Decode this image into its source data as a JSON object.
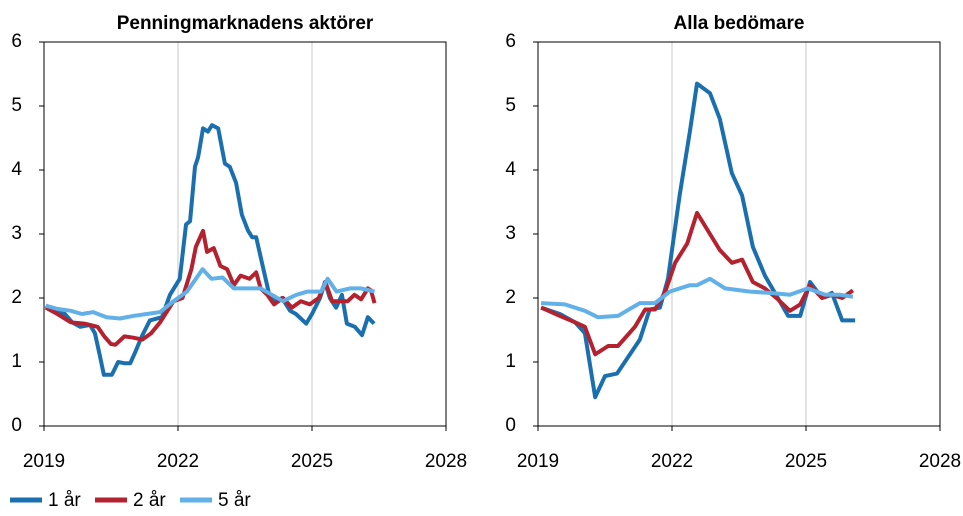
{
  "chart_data": [
    {
      "type": "line",
      "title": "Penningmarknadens aktörer",
      "xlim": [
        2019,
        2028
      ],
      "xticks": [
        2019,
        2022,
        2025,
        2028
      ],
      "ylim": [
        0,
        6
      ],
      "yticks": [
        0,
        1,
        2,
        3,
        4,
        5,
        6
      ],
      "grid": "x",
      "series": [
        {
          "name": "1 år",
          "color": "#1a6faf",
          "x": [
            2019.04,
            2019.25,
            2019.47,
            2019.63,
            2019.81,
            2020.03,
            2020.14,
            2020.25,
            2020.34,
            2020.52,
            2020.66,
            2020.81,
            2020.93,
            2021.04,
            2021.19,
            2021.37,
            2021.64,
            2021.82,
            2022.04,
            2022.18,
            2022.27,
            2022.38,
            2022.45,
            2022.56,
            2022.67,
            2022.76,
            2022.9,
            2023.05,
            2023.16,
            2023.3,
            2023.43,
            2023.57,
            2023.66,
            2023.75,
            2023.88,
            2024.06,
            2024.19,
            2024.33,
            2024.51,
            2024.64,
            2024.87,
            2025.0,
            2025.18,
            2025.29,
            2025.4,
            2025.54,
            2025.67,
            2025.78,
            2025.96,
            2026.12,
            2026.25,
            2026.39
          ],
          "values": [
            1.88,
            1.78,
            1.75,
            1.62,
            1.55,
            1.58,
            1.45,
            1.1,
            0.8,
            0.8,
            1.0,
            0.98,
            0.98,
            1.15,
            1.4,
            1.65,
            1.7,
            2.05,
            2.3,
            3.15,
            3.2,
            4.05,
            4.2,
            4.65,
            4.6,
            4.7,
            4.65,
            4.1,
            4.05,
            3.8,
            3.3,
            3.05,
            2.95,
            2.95,
            2.55,
            2.0,
            1.95,
            2.0,
            1.8,
            1.75,
            1.6,
            1.75,
            2.0,
            2.25,
            2.0,
            1.85,
            2.05,
            1.6,
            1.55,
            1.42,
            1.7,
            1.6
          ]
        },
        {
          "name": "2 år",
          "color": "#b5222f",
          "x": [
            2019.04,
            2019.3,
            2019.6,
            2019.9,
            2020.2,
            2020.35,
            2020.5,
            2020.6,
            2020.8,
            2021.0,
            2021.2,
            2021.4,
            2021.6,
            2021.9,
            2022.1,
            2022.3,
            2022.4,
            2022.56,
            2022.65,
            2022.8,
            2022.95,
            2023.1,
            2023.25,
            2023.4,
            2023.6,
            2023.75,
            2023.85,
            2024.0,
            2024.15,
            2024.35,
            2024.55,
            2024.75,
            2024.95,
            2025.15,
            2025.3,
            2025.45,
            2025.6,
            2025.8,
            2025.95,
            2026.1,
            2026.25,
            2026.32,
            2026.4
          ],
          "values": [
            1.85,
            1.75,
            1.62,
            1.6,
            1.55,
            1.4,
            1.28,
            1.27,
            1.4,
            1.38,
            1.35,
            1.45,
            1.62,
            1.95,
            2.0,
            2.45,
            2.8,
            3.05,
            2.72,
            2.78,
            2.5,
            2.45,
            2.2,
            2.35,
            2.3,
            2.4,
            2.15,
            2.05,
            1.9,
            2.0,
            1.85,
            1.95,
            1.9,
            2.0,
            2.25,
            1.95,
            1.95,
            1.95,
            2.05,
            1.98,
            2.15,
            2.12,
            1.92
          ]
        },
        {
          "name": "5 år",
          "color": "#62b0e8",
          "x": [
            2019.04,
            2019.3,
            2019.6,
            2019.85,
            2020.1,
            2020.4,
            2020.7,
            2021.0,
            2021.3,
            2021.6,
            2021.9,
            2022.2,
            2022.4,
            2022.55,
            2022.75,
            2023.0,
            2023.25,
            2023.5,
            2023.85,
            2024.1,
            2024.35,
            2024.65,
            2024.9,
            2025.2,
            2025.35,
            2025.55,
            2025.85,
            2026.1,
            2026.4
          ],
          "values": [
            1.88,
            1.83,
            1.8,
            1.75,
            1.78,
            1.7,
            1.68,
            1.72,
            1.75,
            1.78,
            1.95,
            2.1,
            2.3,
            2.45,
            2.3,
            2.32,
            2.15,
            2.15,
            2.15,
            2.05,
            1.95,
            2.05,
            2.1,
            2.1,
            2.3,
            2.1,
            2.15,
            2.15,
            2.1
          ]
        }
      ]
    },
    {
      "type": "line",
      "title": "Alla bedömare",
      "xlim": [
        2019,
        2028
      ],
      "xticks": [
        2019,
        2022,
        2025,
        2028
      ],
      "ylim": [
        0,
        6
      ],
      "yticks": [
        0,
        1,
        2,
        3,
        4,
        5,
        6
      ],
      "grid": "x",
      "series": [
        {
          "color": "#1a6faf",
          "x": [
            2019.07,
            2019.49,
            2019.83,
            2020.05,
            2020.28,
            2020.5,
            2020.77,
            2021.28,
            2021.5,
            2021.73,
            2021.91,
            2022.17,
            2022.4,
            2022.56,
            2022.85,
            2023.07,
            2023.34,
            2023.57,
            2023.81,
            2024.08,
            2024.37,
            2024.6,
            2024.87,
            2025.09,
            2025.36,
            2025.58,
            2025.81,
            2026.1
          ],
          "values": [
            1.85,
            1.75,
            1.62,
            1.45,
            0.45,
            0.78,
            0.82,
            1.35,
            1.82,
            1.85,
            2.3,
            3.6,
            4.6,
            5.35,
            5.2,
            4.8,
            3.95,
            3.6,
            2.8,
            2.35,
            2.0,
            1.72,
            1.72,
            2.25,
            2.0,
            2.08,
            1.65,
            1.65
          ]
        },
        {
          "color": "#b5222f",
          "x": [
            2019.07,
            2019.49,
            2019.83,
            2020.05,
            2020.28,
            2020.57,
            2020.79,
            2021.17,
            2021.4,
            2021.62,
            2021.85,
            2022.07,
            2022.34,
            2022.56,
            2022.85,
            2023.07,
            2023.34,
            2023.57,
            2023.81,
            2024.08,
            2024.37,
            2024.64,
            2024.87,
            2025.09,
            2025.36,
            2025.58,
            2025.81,
            2026.05
          ],
          "values": [
            1.85,
            1.72,
            1.62,
            1.55,
            1.12,
            1.25,
            1.25,
            1.55,
            1.82,
            1.82,
            2.1,
            2.55,
            2.85,
            3.33,
            3.0,
            2.75,
            2.55,
            2.6,
            2.25,
            2.15,
            1.98,
            1.8,
            1.9,
            2.2,
            2.0,
            2.05,
            2.0,
            2.12
          ]
        },
        {
          "color": "#62b0e8",
          "x": [
            2019.07,
            2019.6,
            2020.05,
            2020.34,
            2020.79,
            2021.28,
            2021.62,
            2021.95,
            2022.4,
            2022.56,
            2022.85,
            2023.19,
            2023.75,
            2024.19,
            2024.64,
            2025.04,
            2025.43,
            2025.77,
            2026.05
          ],
          "values": [
            1.92,
            1.9,
            1.8,
            1.7,
            1.72,
            1.92,
            1.92,
            2.1,
            2.2,
            2.2,
            2.3,
            2.15,
            2.1,
            2.08,
            2.05,
            2.15,
            2.05,
            2.05,
            2.02
          ]
        }
      ]
    }
  ]
}
